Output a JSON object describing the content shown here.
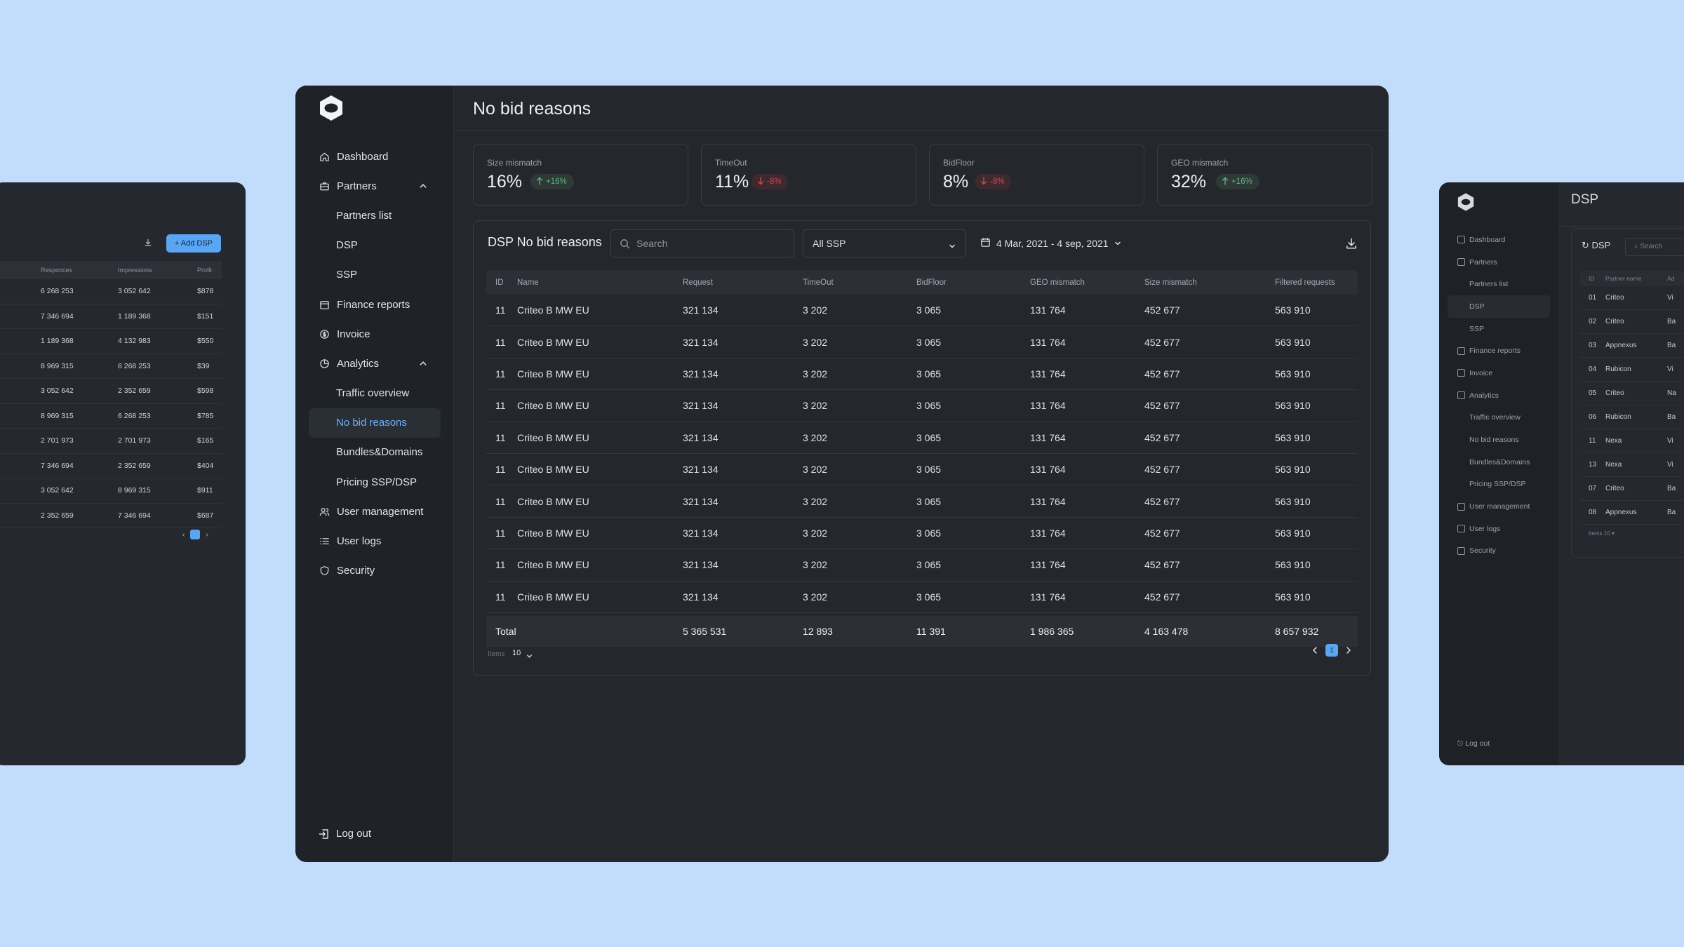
{
  "sidebar": {
    "items": [
      {
        "label": "Dashboard",
        "icon": "home-icon"
      },
      {
        "label": "Partners",
        "icon": "briefcase-icon"
      },
      {
        "label": "Partners list"
      },
      {
        "label": "DSP"
      },
      {
        "label": "SSP"
      },
      {
        "label": "Finance reports",
        "icon": "calendar-icon"
      },
      {
        "label": "Invoice",
        "icon": "dollar-circle-icon"
      },
      {
        "label": "Analytics",
        "icon": "pie-chart-icon"
      },
      {
        "label": "Traffic overview"
      },
      {
        "label": "No bid reasons"
      },
      {
        "label": "Bundles&Domains"
      },
      {
        "label": "Pricing SSP/DSP"
      },
      {
        "label": "User management",
        "icon": "users-icon"
      },
      {
        "label": "User logs",
        "icon": "list-icon"
      },
      {
        "label": "Security",
        "icon": "shield-icon"
      }
    ],
    "logout": "Log out"
  },
  "header": {
    "title": "No bid reasons"
  },
  "kpis": [
    {
      "label": "Size mismatch",
      "value": "16%",
      "delta": "+16%",
      "trend": "up"
    },
    {
      "label": "TimeOut",
      "value": "11%",
      "delta": "-8%",
      "trend": "down"
    },
    {
      "label": "BidFloor",
      "value": "8%",
      "delta": "-8%",
      "trend": "down"
    },
    {
      "label": "GEO mismatch",
      "value": "32%",
      "delta": "+16%",
      "trend": "up"
    }
  ],
  "table_card": {
    "title": "DSP No bid reasons",
    "search_placeholder": "Search",
    "ssp_select": "All SSP",
    "date_range": "4 Mar, 2021 - 4 sep, 2021",
    "columns": [
      "ID",
      "Name",
      "Request",
      "TimeOut",
      "BidFloor",
      "GEO mismatch",
      "Size mismatch",
      "Filtered requests"
    ],
    "rows": [
      [
        "11",
        "Criteo B MW EU",
        "321 134",
        "3 202",
        "3 065",
        "131 764",
        "452 677",
        "563 910"
      ],
      [
        "11",
        "Criteo B MW EU",
        "321 134",
        "3 202",
        "3 065",
        "131 764",
        "452 677",
        "563 910"
      ],
      [
        "11",
        "Criteo B MW EU",
        "321 134",
        "3 202",
        "3 065",
        "131 764",
        "452 677",
        "563 910"
      ],
      [
        "11",
        "Criteo B MW EU",
        "321 134",
        "3 202",
        "3 065",
        "131 764",
        "452 677",
        "563 910"
      ],
      [
        "11",
        "Criteo B MW EU",
        "321 134",
        "3 202",
        "3 065",
        "131 764",
        "452 677",
        "563 910"
      ],
      [
        "11",
        "Criteo B MW EU",
        "321 134",
        "3 202",
        "3 065",
        "131 764",
        "452 677",
        "563 910"
      ],
      [
        "11",
        "Criteo B MW EU",
        "321 134",
        "3 202",
        "3 065",
        "131 764",
        "452 677",
        "563 910"
      ],
      [
        "11",
        "Criteo B MW EU",
        "321 134",
        "3 202",
        "3 065",
        "131 764",
        "452 677",
        "563 910"
      ],
      [
        "11",
        "Criteo B MW EU",
        "321 134",
        "3 202",
        "3 065",
        "131 764",
        "452 677",
        "563 910"
      ],
      [
        "11",
        "Criteo B MW EU",
        "321 134",
        "3 202",
        "3 065",
        "131 764",
        "452 677",
        "563 910"
      ]
    ],
    "total": [
      "Total",
      "5 365 531",
      "12 893",
      "11 391",
      "1 986 365",
      "4 163 478",
      "8 657 932"
    ],
    "items_label": "Items",
    "items_per_page": "10",
    "current_page": "1"
  },
  "left_window": {
    "add_button": "Add DSP",
    "columns": [
      "Responces",
      "Impressions",
      "Profit"
    ],
    "rows": [
      [
        "6 268 253",
        "3 052 642",
        "$878"
      ],
      [
        "7 346 694",
        "1 189 368",
        "$151"
      ],
      [
        "1 189 368",
        "4 132 983",
        "$550"
      ],
      [
        "8 969 315",
        "6 268 253",
        "$39"
      ],
      [
        "3 052 642",
        "2 352 659",
        "$598"
      ],
      [
        "8 969 315",
        "6 268 253",
        "$785"
      ],
      [
        "2 701 973",
        "2 701 973",
        "$165"
      ],
      [
        "7 346 694",
        "2 352 659",
        "$404"
      ],
      [
        "3 052 642",
        "8 969 315",
        "$911"
      ],
      [
        "2 352 659",
        "7 346 694",
        "$687"
      ]
    ],
    "current_page": "1"
  },
  "right_window": {
    "title": "DSP",
    "card_title": "DSP",
    "search_placeholder": "Search",
    "nav": [
      {
        "label": "Dashboard"
      },
      {
        "label": "Partners"
      },
      {
        "label": "Partners list"
      },
      {
        "label": "DSP"
      },
      {
        "label": "SSP"
      },
      {
        "label": "Finance reports"
      },
      {
        "label": "Invoice"
      },
      {
        "label": "Analytics"
      },
      {
        "label": "Traffic overview"
      },
      {
        "label": "No bid reasons"
      },
      {
        "label": "Bundles&Domains"
      },
      {
        "label": "Pricing SSP/DSP"
      },
      {
        "label": "User management"
      },
      {
        "label": "User logs"
      },
      {
        "label": "Security"
      }
    ],
    "logout": "Log out",
    "columns": [
      "ID",
      "Partner name",
      "Ad"
    ],
    "rows": [
      [
        "01",
        "Criteo",
        "Vi"
      ],
      [
        "02",
        "Criteo",
        "Ba"
      ],
      [
        "03",
        "Appnexus",
        "Ba"
      ],
      [
        "04",
        "Rubicon",
        "Vi"
      ],
      [
        "05",
        "Criteo",
        "Na"
      ],
      [
        "06",
        "Rubicon",
        "Ba"
      ],
      [
        "11",
        "Nexa",
        "Vi"
      ],
      [
        "13",
        "Nexa",
        "Vi"
      ],
      [
        "07",
        "Criteo",
        "Ba"
      ],
      [
        "08",
        "Appnexus",
        "Ba"
      ]
    ],
    "items_label": "Items",
    "items_per_page": "10"
  },
  "colors": {
    "background": "#c2dcfb",
    "window": "#24272c",
    "sidebar": "#1f2227",
    "accent": "#5aa6f3",
    "positive": "#61b288",
    "negative": "#d3455a"
  }
}
